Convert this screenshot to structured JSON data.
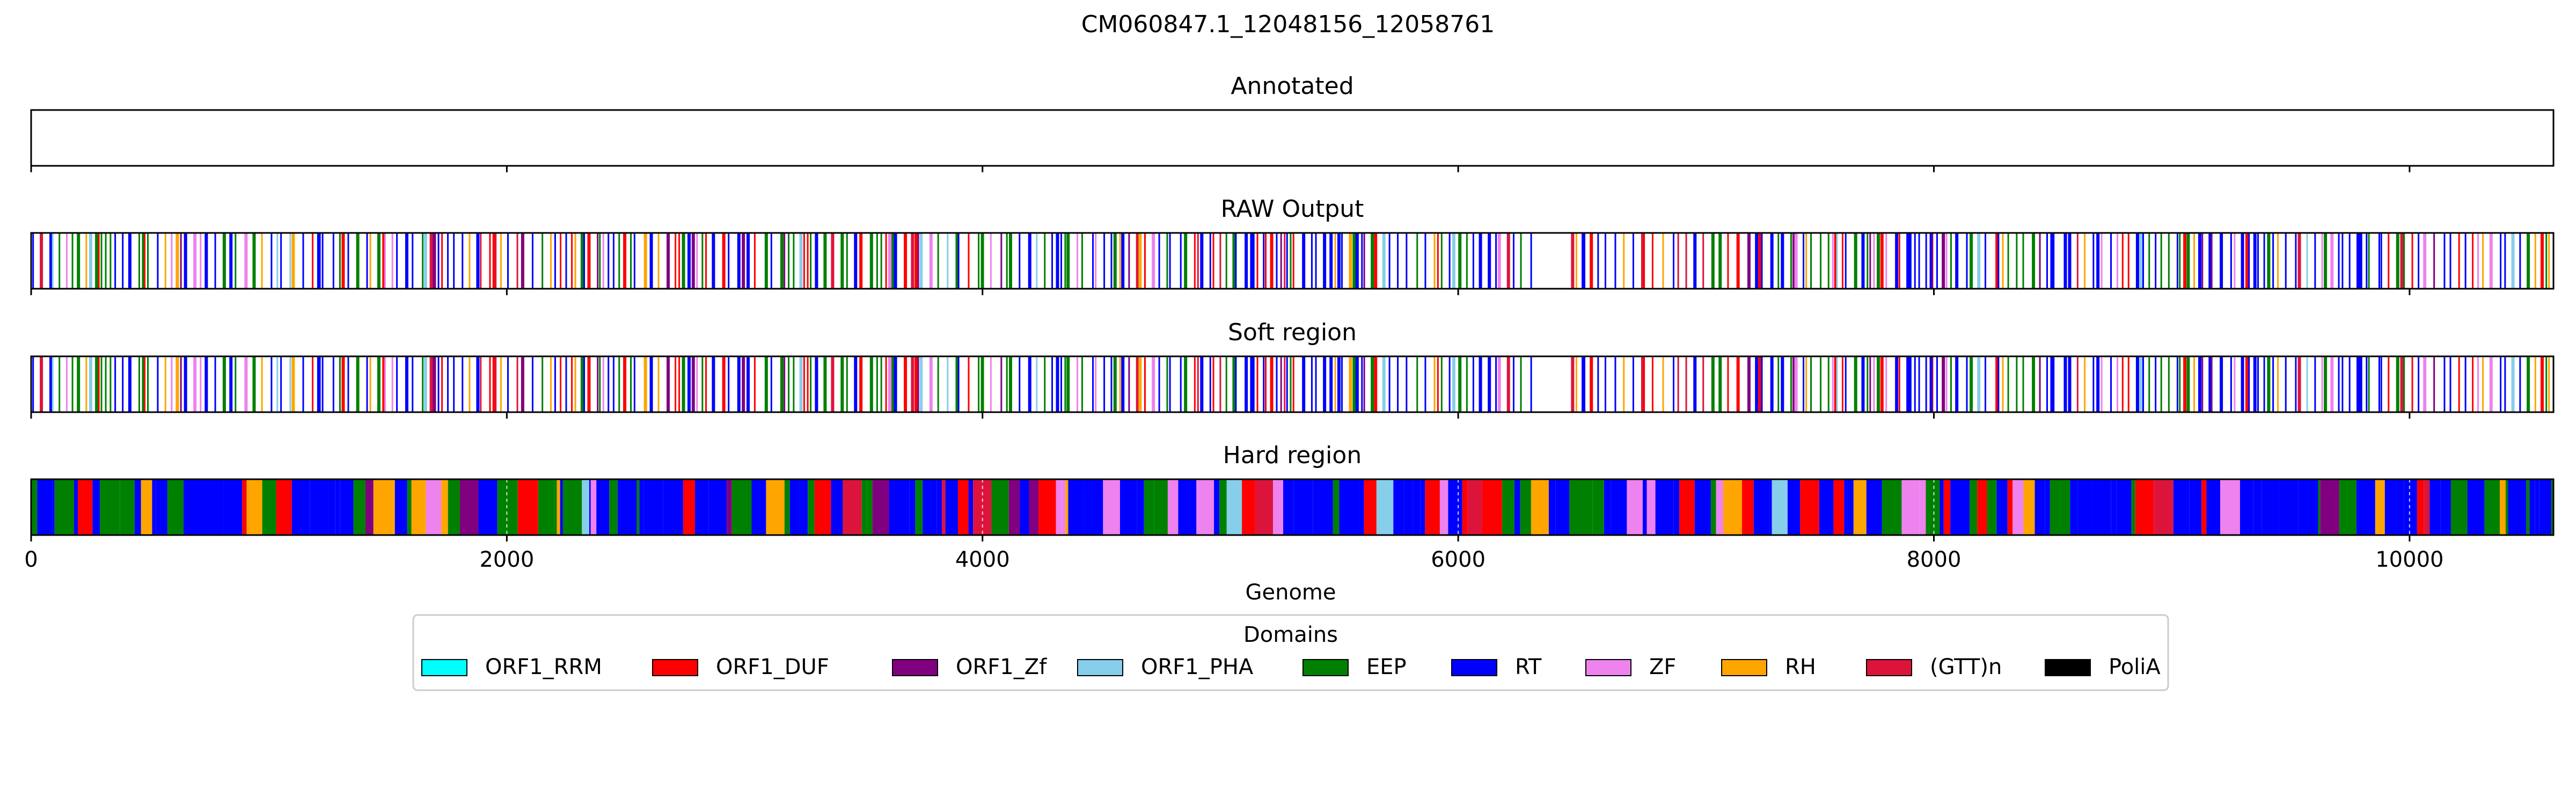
{
  "chart_data": {
    "type": "track",
    "title": "CM060847.1_12048156_12058761",
    "xlabel": "Genome",
    "xlim": [
      0,
      10605
    ],
    "xticks": [
      0,
      2000,
      4000,
      6000,
      8000,
      10000
    ],
    "xtick_labels": [
      "0",
      "2000",
      "4000",
      "6000",
      "8000",
      "10000"
    ],
    "legend": {
      "title": "Domains",
      "placement": "bottom-center",
      "entries": [
        {
          "label": "ORF1_RRM",
          "color": "#00ffff"
        },
        {
          "label": "ORF1_DUF",
          "color": "#ff0000"
        },
        {
          "label": "ORF1_Zf",
          "color": "#800080"
        },
        {
          "label": "ORF1_PHA",
          "color": "#87ceeb"
        },
        {
          "label": "EEP",
          "color": "#008000"
        },
        {
          "label": "RT",
          "color": "#0000ff"
        },
        {
          "label": "ZF",
          "color": "#ee82ee"
        },
        {
          "label": "RH",
          "color": "#ffa500"
        },
        {
          "label": "(GTT)n",
          "color": "#dc143c"
        },
        {
          "label": "PoliA",
          "color": "#000000"
        }
      ]
    },
    "panels": [
      {
        "title": "Annotated",
        "mode": "empty",
        "segments": []
      },
      {
        "title": "RAW Output",
        "mode": "lines",
        "seed": 7,
        "gaps": [
          [
            6320,
            6470
          ]
        ]
      },
      {
        "title": "Soft region",
        "mode": "lines",
        "seed": 7,
        "gaps": [
          [
            6320,
            6470
          ]
        ]
      },
      {
        "title": "Hard region",
        "mode": "filled",
        "seed": 13,
        "gaps": []
      }
    ]
  }
}
